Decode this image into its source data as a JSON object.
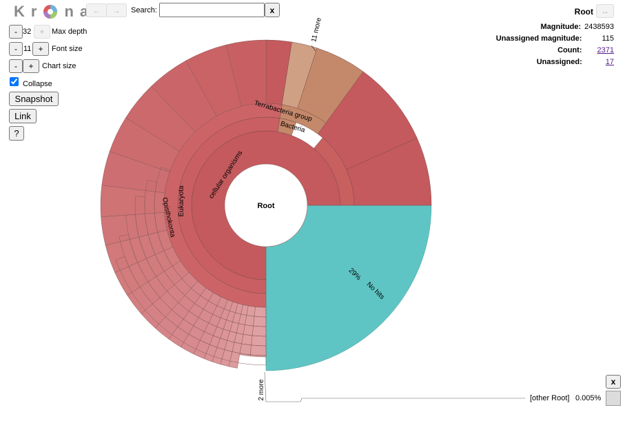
{
  "app": {
    "logo": "Krona"
  },
  "nav": {
    "back_label": "←",
    "forward_label": "→",
    "search_label": "Search:",
    "search_value": "",
    "clear_label": "x"
  },
  "controls": {
    "max_depth": {
      "minus": "-",
      "value": "32",
      "plus": "+",
      "label": "Max depth"
    },
    "font_size": {
      "minus": "-",
      "value": "11",
      "plus": "+",
      "label": "Font size"
    },
    "chart_size": {
      "minus": "-",
      "plus": "+",
      "label": "Chart size"
    },
    "collapse": {
      "label": "Collapse",
      "checked": true
    },
    "snapshot_label": "Snapshot",
    "link_label": "Link",
    "help_label": "?"
  },
  "details": {
    "title": "Root",
    "expand_label": "↔",
    "magnitude_label": "Magnitude:",
    "magnitude_value": "2438593",
    "unassigned_magnitude_label": "Unassigned magnitude:",
    "unassigned_magnitude_value": "115",
    "count_label": "Count:",
    "count_value": "2371",
    "unassigned_label": "Unassigned:",
    "unassigned_value": "17"
  },
  "chart": {
    "center_label": "Root",
    "labels": {
      "cellular": "cellular organisms",
      "eukaryota": "Eukaryota",
      "opisthokonta": "Opisthokonta",
      "terrabacteria": "Terrabacteria group",
      "bacteria": "Bacteria",
      "nohits_pct": "29%",
      "nohits": "No hits",
      "more_top": "11 more",
      "more_bottom": "2 more"
    },
    "colors": {
      "cellular": "#c45a5e",
      "nohits": "#5fc5c4",
      "bacteria": "#c3896a",
      "euk_light": "#dfa1a3"
    }
  },
  "bottom": {
    "close_label": "x",
    "other_label": "[other Root]",
    "other_pct": "0.005%"
  }
}
